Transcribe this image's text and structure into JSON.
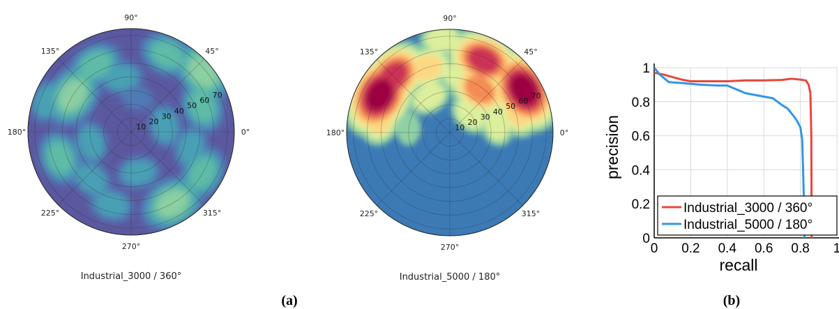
{
  "panels": {
    "a_label": "(a)",
    "b_label": "(b)"
  },
  "chart_data": [
    {
      "type": "heatmap",
      "subtype": "polar-density",
      "caption": "Industrial_3000 / 360°",
      "angle_ticks": [
        "0°",
        "45°",
        "90°",
        "135°",
        "180°",
        "225°",
        "270°",
        "315°"
      ],
      "radial_ticks": [
        "10",
        "20",
        "30",
        "40",
        "50",
        "60",
        "70"
      ],
      "rlim": [
        0,
        75
      ],
      "grid": true,
      "colors": {
        "background": "#5b58a0",
        "levels": [
          "#4f7ab5",
          "#4aa0b4",
          "#5fbba6",
          "#8ccfa2",
          "#bde3a0"
        ]
      },
      "blobs": [
        {
          "theta": 148,
          "r": 50,
          "intensity": 4
        },
        {
          "theta": 118,
          "r": 55,
          "intensity": 3
        },
        {
          "theta": 100,
          "r": 40,
          "intensity": 2
        },
        {
          "theta": 65,
          "r": 62,
          "intensity": 3
        },
        {
          "theta": 40,
          "r": 68,
          "intensity": 4
        },
        {
          "theta": 20,
          "r": 55,
          "intensity": 3
        },
        {
          "theta": 160,
          "r": 65,
          "intensity": 2
        },
        {
          "theta": 200,
          "r": 55,
          "intensity": 3
        },
        {
          "theta": 230,
          "r": 45,
          "intensity": 2
        },
        {
          "theta": 255,
          "r": 55,
          "intensity": 2
        },
        {
          "theta": 300,
          "r": 60,
          "intensity": 4
        },
        {
          "theta": 330,
          "r": 60,
          "intensity": 3
        },
        {
          "theta": 345,
          "r": 45,
          "intensity": 2
        },
        {
          "theta": 10,
          "r": 25,
          "intensity": 2
        },
        {
          "theta": 80,
          "r": 25,
          "intensity": 1
        },
        {
          "theta": 280,
          "r": 30,
          "intensity": 2
        },
        {
          "theta": 195,
          "r": 30,
          "intensity": 2
        }
      ]
    },
    {
      "type": "heatmap",
      "subtype": "polar-density",
      "caption": "Industrial_5000 / 180°",
      "angle_ticks": [
        "0°",
        "45°",
        "90°",
        "135°",
        "180°",
        "225°",
        "270°",
        "315°"
      ],
      "radial_ticks": [
        "10",
        "20",
        "30",
        "40",
        "50",
        "60",
        "70"
      ],
      "rlim": [
        0,
        75
      ],
      "grid": true,
      "colors": {
        "background": "#3c7ab5",
        "levels": [
          "#8fd0a4",
          "#dcef9c",
          "#fdd883",
          "#f48a55",
          "#cc3355",
          "#9e0142"
        ]
      },
      "blobs": [
        {
          "theta": 152,
          "r": 58,
          "intensity": 6
        },
        {
          "theta": 135,
          "r": 58,
          "intensity": 5
        },
        {
          "theta": 168,
          "r": 52,
          "intensity": 3
        },
        {
          "theta": 110,
          "r": 50,
          "intensity": 3
        },
        {
          "theta": 120,
          "r": 30,
          "intensity": 2
        },
        {
          "theta": 65,
          "r": 58,
          "intensity": 5
        },
        {
          "theta": 55,
          "r": 38,
          "intensity": 4
        },
        {
          "theta": 80,
          "r": 42,
          "intensity": 2
        },
        {
          "theta": 30,
          "r": 62,
          "intensity": 6
        },
        {
          "theta": 18,
          "r": 52,
          "intensity": 3
        },
        {
          "theta": 42,
          "r": 20,
          "intensity": 2
        },
        {
          "theta": 95,
          "r": 68,
          "intensity": 2
        },
        {
          "theta": 175,
          "r": 30,
          "intensity": 1
        },
        {
          "theta": 10,
          "r": 35,
          "intensity": 2
        },
        {
          "theta": 150,
          "r": 72,
          "intensity": 2
        }
      ]
    },
    {
      "type": "line",
      "xlabel": "recall",
      "ylabel": "precision",
      "xlim": [
        0,
        1
      ],
      "ylim": [
        0,
        1
      ],
      "xticks": [
        "0",
        "0.2",
        "0.4",
        "0.6",
        "0.8",
        "1"
      ],
      "yticks": [
        "0",
        "0.2",
        "0.4",
        "0.6",
        "0.8",
        "1"
      ],
      "grid": true,
      "legend_position": "bottom-right",
      "series": [
        {
          "name": "Industrial_3000 / 360°",
          "color": "#e8473a",
          "points": [
            [
              0,
              0.97
            ],
            [
              0.05,
              0.96
            ],
            [
              0.1,
              0.945
            ],
            [
              0.15,
              0.93
            ],
            [
              0.2,
              0.92
            ],
            [
              0.3,
              0.92
            ],
            [
              0.4,
              0.92
            ],
            [
              0.5,
              0.925
            ],
            [
              0.6,
              0.925
            ],
            [
              0.7,
              0.928
            ],
            [
              0.75,
              0.935
            ],
            [
              0.8,
              0.93
            ],
            [
              0.83,
              0.925
            ],
            [
              0.845,
              0.9
            ],
            [
              0.855,
              0.85
            ],
            [
              0.86,
              0.6
            ],
            [
              0.862,
              0.0
            ]
          ]
        },
        {
          "name": "Industrial_5000 / 180°",
          "color": "#2f96e6",
          "points": [
            [
              0,
              1.0
            ],
            [
              0.03,
              0.96
            ],
            [
              0.08,
              0.915
            ],
            [
              0.15,
              0.91
            ],
            [
              0.25,
              0.9
            ],
            [
              0.35,
              0.895
            ],
            [
              0.4,
              0.895
            ],
            [
              0.5,
              0.85
            ],
            [
              0.6,
              0.83
            ],
            [
              0.65,
              0.82
            ],
            [
              0.7,
              0.78
            ],
            [
              0.73,
              0.76
            ],
            [
              0.76,
              0.72
            ],
            [
              0.78,
              0.69
            ],
            [
              0.8,
              0.65
            ],
            [
              0.81,
              0.58
            ],
            [
              0.815,
              0.4
            ],
            [
              0.82,
              0.2
            ],
            [
              0.822,
              0.0
            ]
          ]
        }
      ]
    }
  ]
}
